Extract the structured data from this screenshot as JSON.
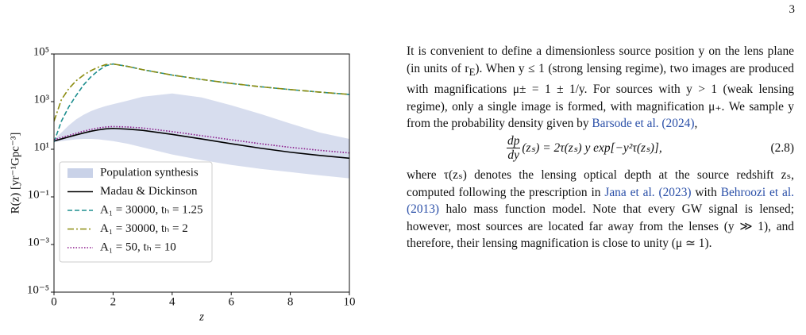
{
  "page_number": "3",
  "chart_data": {
    "type": "line",
    "xlabel": "z",
    "ylabel": "R(z) [yr⁻¹Gpc⁻³]",
    "yscale": "log",
    "x": [
      0,
      0.25,
      0.5,
      0.75,
      1,
      1.25,
      1.5,
      1.75,
      2,
      2.5,
      3,
      4,
      5,
      6,
      7,
      8,
      9,
      10
    ],
    "xlim": [
      0,
      10
    ],
    "xticks": [
      0,
      2,
      4,
      6,
      8,
      10
    ],
    "ylim": [
      1e-05,
      100000
    ],
    "yticks": [
      {
        "value": 1e-05,
        "label": "10⁻⁵"
      },
      {
        "value": 0.001,
        "label": "10⁻³"
      },
      {
        "value": 0.1,
        "label": "10⁻¹"
      },
      {
        "value": 10,
        "label": "10¹"
      },
      {
        "value": 1000,
        "label": "10³"
      },
      {
        "value": 100000,
        "label": "10⁵"
      }
    ],
    "band": {
      "name": "Population synthesis",
      "color": "#c9d2e8",
      "lower": [
        20,
        22,
        24,
        26,
        27,
        27,
        26,
        24,
        22,
        17,
        12,
        6,
        3.5,
        2.2,
        1.5,
        1.1,
        0.8,
        0.6
      ],
      "upper": [
        25,
        50,
        100,
        180,
        280,
        400,
        520,
        650,
        780,
        1100,
        1600,
        2200,
        1500,
        700,
        300,
        120,
        50,
        27
      ]
    },
    "series": [
      {
        "name": "Madau & Dickinson",
        "color": "#000000",
        "dash": "none",
        "values": [
          22,
          27,
          33,
          40,
          48,
          57,
          65,
          72,
          75,
          70,
          62,
          42,
          27,
          17,
          11,
          7.5,
          5.5,
          4.2
        ]
      },
      {
        "name": "A₁ = 30000, tₕ = 1.25",
        "color": "#1f8f8f",
        "dash": "6,3",
        "values": [
          20,
          150,
          600,
          1800,
          5000,
          11000,
          20000,
          32000,
          38000,
          30000,
          22000,
          13000,
          8500,
          5800,
          4200,
          3200,
          2500,
          2000
        ]
      },
      {
        "name": "A₁ = 30000, tₕ = 2",
        "color": "#8c8c10",
        "dash": "8,3,2,3",
        "values": [
          150,
          1200,
          3500,
          7500,
          13000,
          20000,
          28000,
          36000,
          38000,
          30000,
          22000,
          13000,
          8500,
          5800,
          4200,
          3200,
          2500,
          2000
        ]
      },
      {
        "name": "A₁ = 50, tₕ = 10",
        "color": "#8b1a8b",
        "dash": "1.5,2",
        "values": [
          25,
          31,
          38,
          47,
          57,
          68,
          78,
          86,
          90,
          86,
          78,
          55,
          37,
          25,
          17,
          12,
          9,
          7
        ]
      }
    ]
  },
  "paragraph_1": [
    "It is convenient to define a dimensionless source position y on the lens plane (in units of r",
    {
      "sub": "E"
    },
    "). When y ≤ 1 (strong lensing regime), two images are produced with magnifications μ± = 1 ± 1/y. For sources with y > 1 (weak lensing regime), only a single image is formed, with magnification μ₊. We sample y from the probability density given by ",
    {
      "cite": "Barsode et al. (2024)"
    },
    ","
  ],
  "equation": {
    "numerator": "dp",
    "denominator": "dy",
    "rest": "(zₛ) = 2τ(zₛ) y exp[−y²τ(zₛ)],",
    "number": "(2.8)"
  },
  "paragraph_2": [
    "where τ(zₛ) denotes the lensing optical depth at the source redshift zₛ, computed following the prescription in ",
    {
      "cite": "Jana et al. (2023)"
    },
    " with ",
    {
      "cite": "Behroozi et al. (2013)"
    },
    " halo mass function model. Note that every GW signal is lensed; however, most sources are located far away from the lenses (y ≫ 1), and therefore, their lensing magnification is close to unity (μ ≃ 1)."
  ]
}
